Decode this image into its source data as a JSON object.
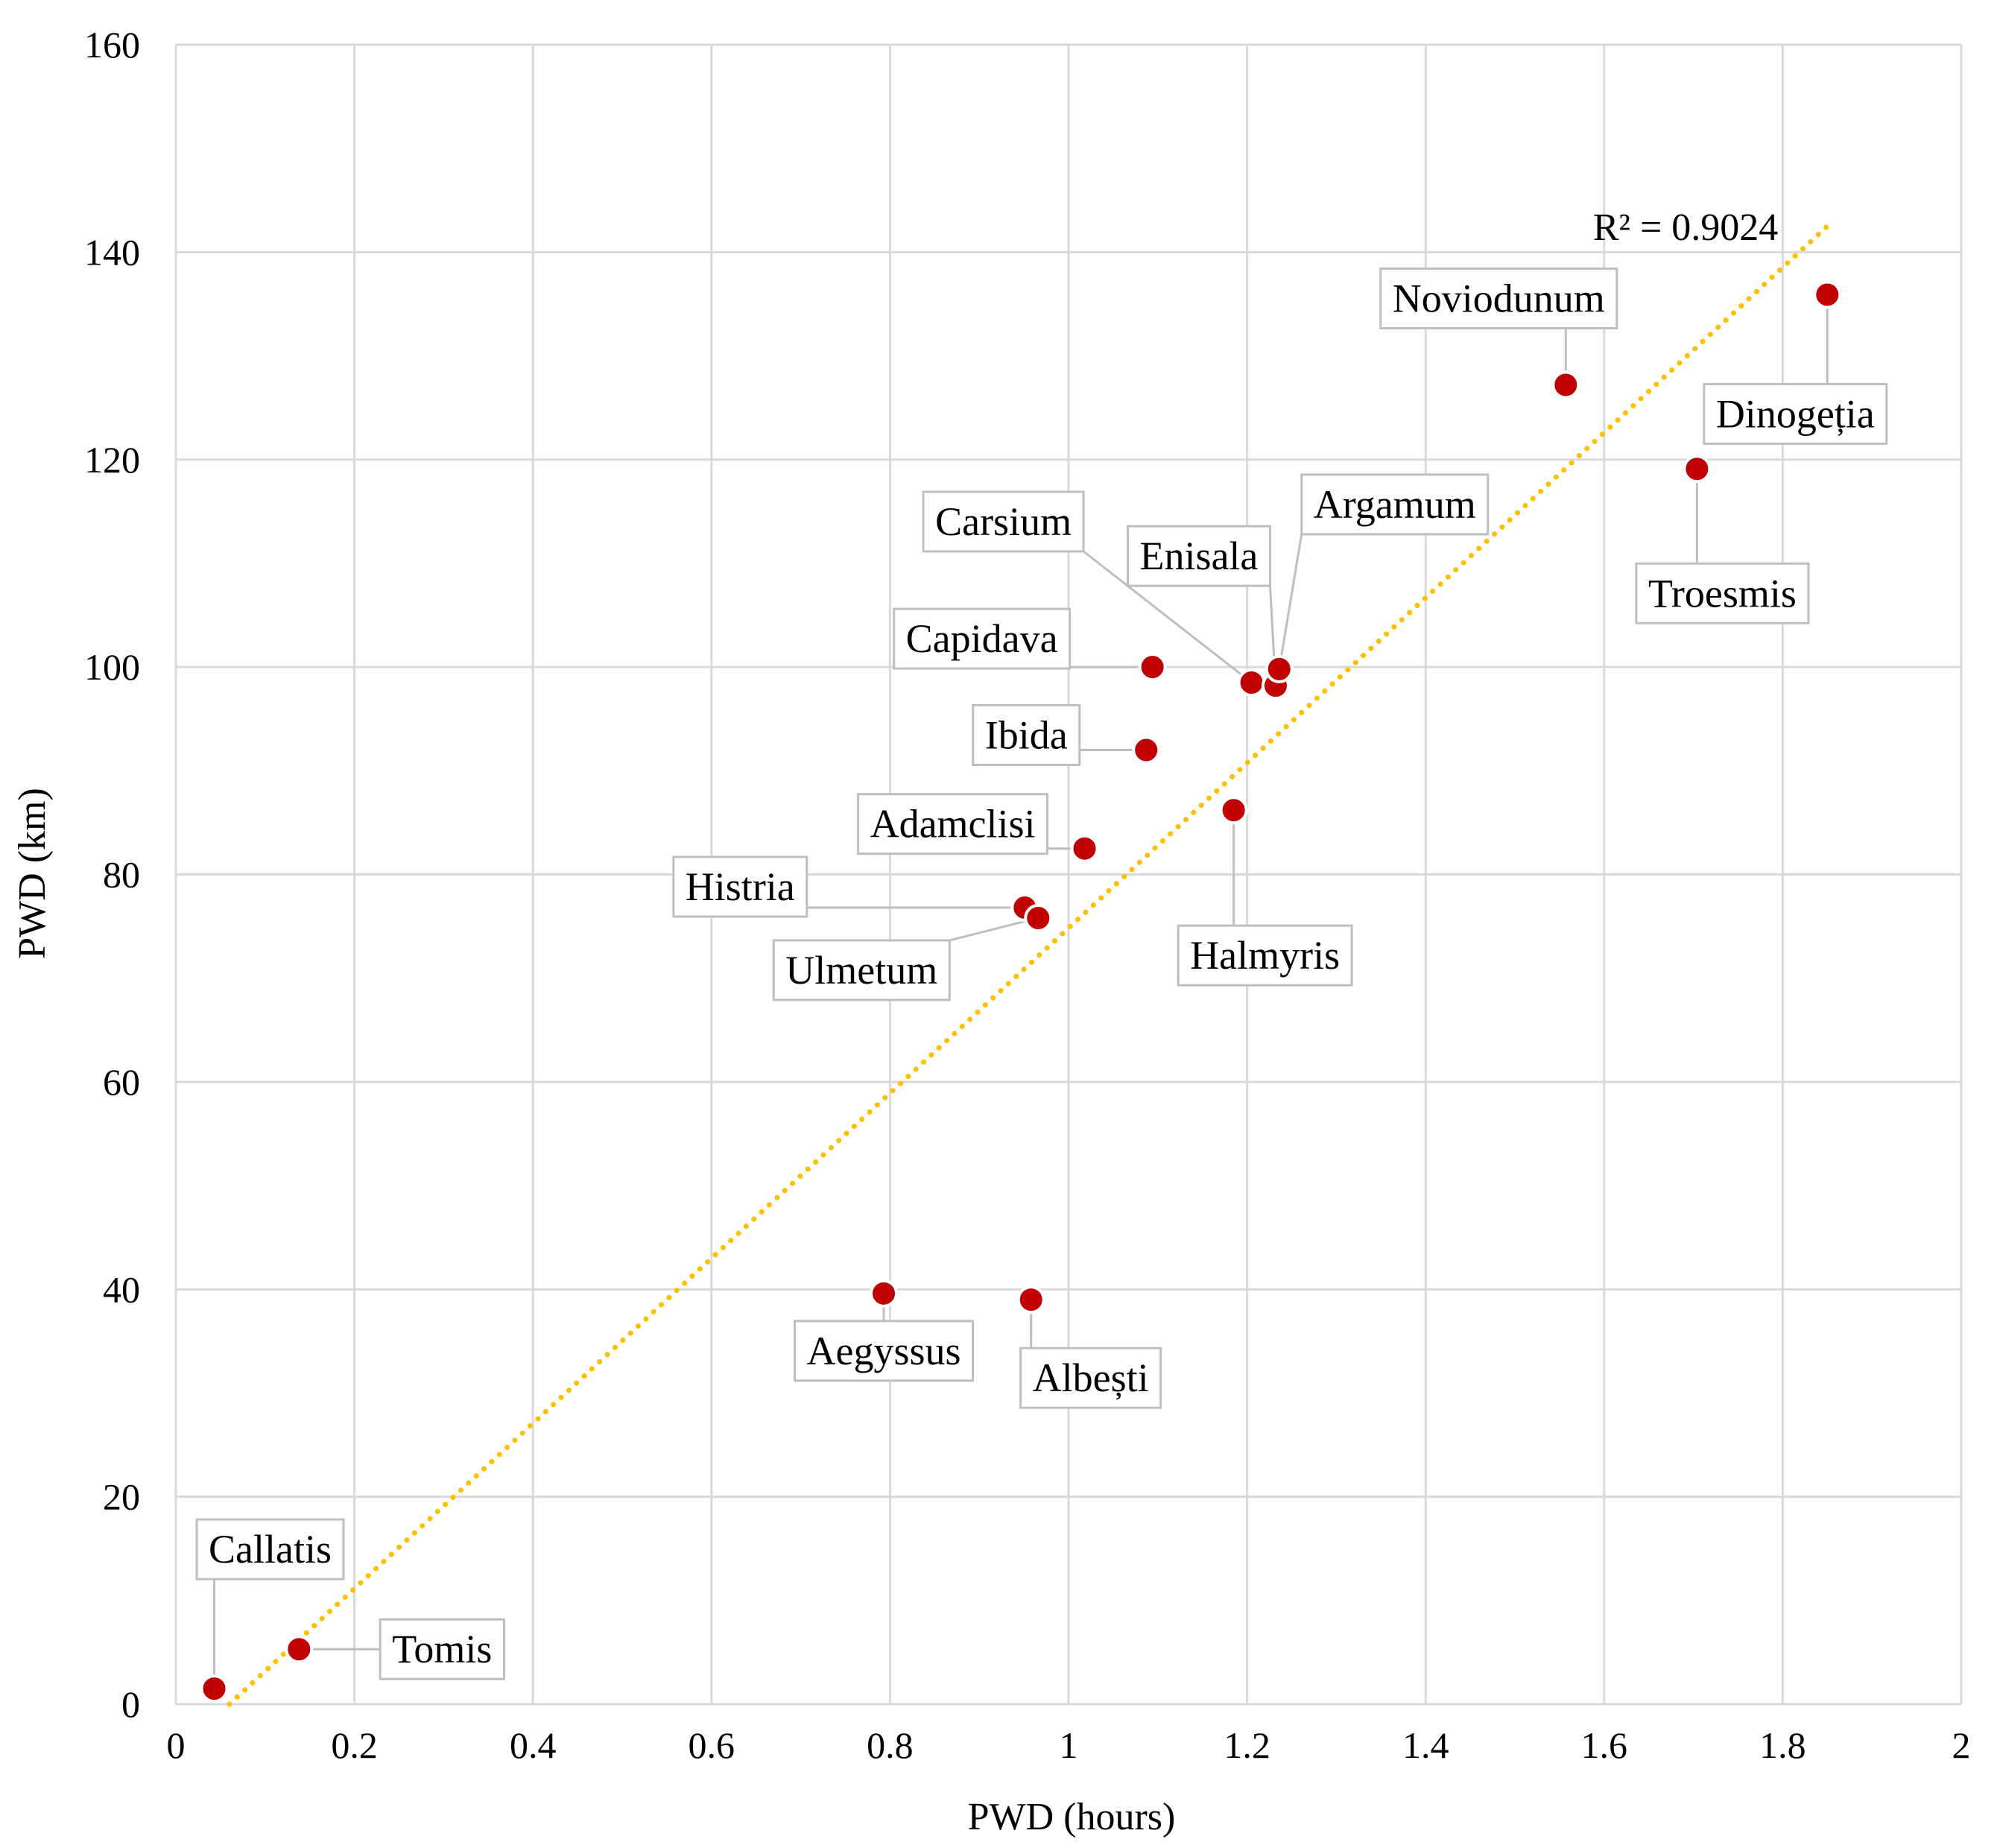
{
  "chart_data": {
    "type": "scatter",
    "title": "",
    "xlabel": "PWD (hours)",
    "ylabel": "PWD (km)",
    "xlim": [
      0,
      2
    ],
    "ylim": [
      0,
      160
    ],
    "x_ticks": [
      "0",
      "0.2",
      "0.4",
      "0.6",
      "0.8",
      "1",
      "1.2",
      "1.4",
      "1.6",
      "1.8",
      "2"
    ],
    "y_ticks": [
      "0",
      "20",
      "40",
      "60",
      "80",
      "100",
      "120",
      "140",
      "160"
    ],
    "grid": true,
    "marker_color": "#c00000",
    "trendline_color": "#ffc000",
    "trendline": {
      "label": "R² = 0.9024",
      "x": [
        0.06,
        1.85
      ],
      "y": [
        0,
        142.5
      ]
    },
    "points": [
      {
        "name": "Callatis",
        "x": 0.043,
        "y": 1.5
      },
      {
        "name": "Tomis",
        "x": 0.138,
        "y": 5.3
      },
      {
        "name": "Aegyssus",
        "x": 0.793,
        "y": 39.6
      },
      {
        "name": "Albești",
        "x": 0.958,
        "y": 39.0
      },
      {
        "name": "Histria",
        "x": 0.951,
        "y": 76.8
      },
      {
        "name": "Ulmetum",
        "x": 0.966,
        "y": 75.8
      },
      {
        "name": "Adamclisi",
        "x": 1.018,
        "y": 82.5
      },
      {
        "name": "Ibida",
        "x": 1.087,
        "y": 92.0
      },
      {
        "name": "Capidava",
        "x": 1.094,
        "y": 100.0
      },
      {
        "name": "Carsium",
        "x": 1.205,
        "y": 98.5
      },
      {
        "name": "Enisala",
        "x": 1.232,
        "y": 98.2
      },
      {
        "name": "Argamum",
        "x": 1.236,
        "y": 99.8
      },
      {
        "name": "Halmyris",
        "x": 1.185,
        "y": 86.2
      },
      {
        "name": "Noviodunum",
        "x": 1.557,
        "y": 127.2
      },
      {
        "name": "Troesmis",
        "x": 1.704,
        "y": 119.1
      },
      {
        "name": "Dinogeția",
        "x": 1.85,
        "y": 135.9
      }
    ]
  }
}
